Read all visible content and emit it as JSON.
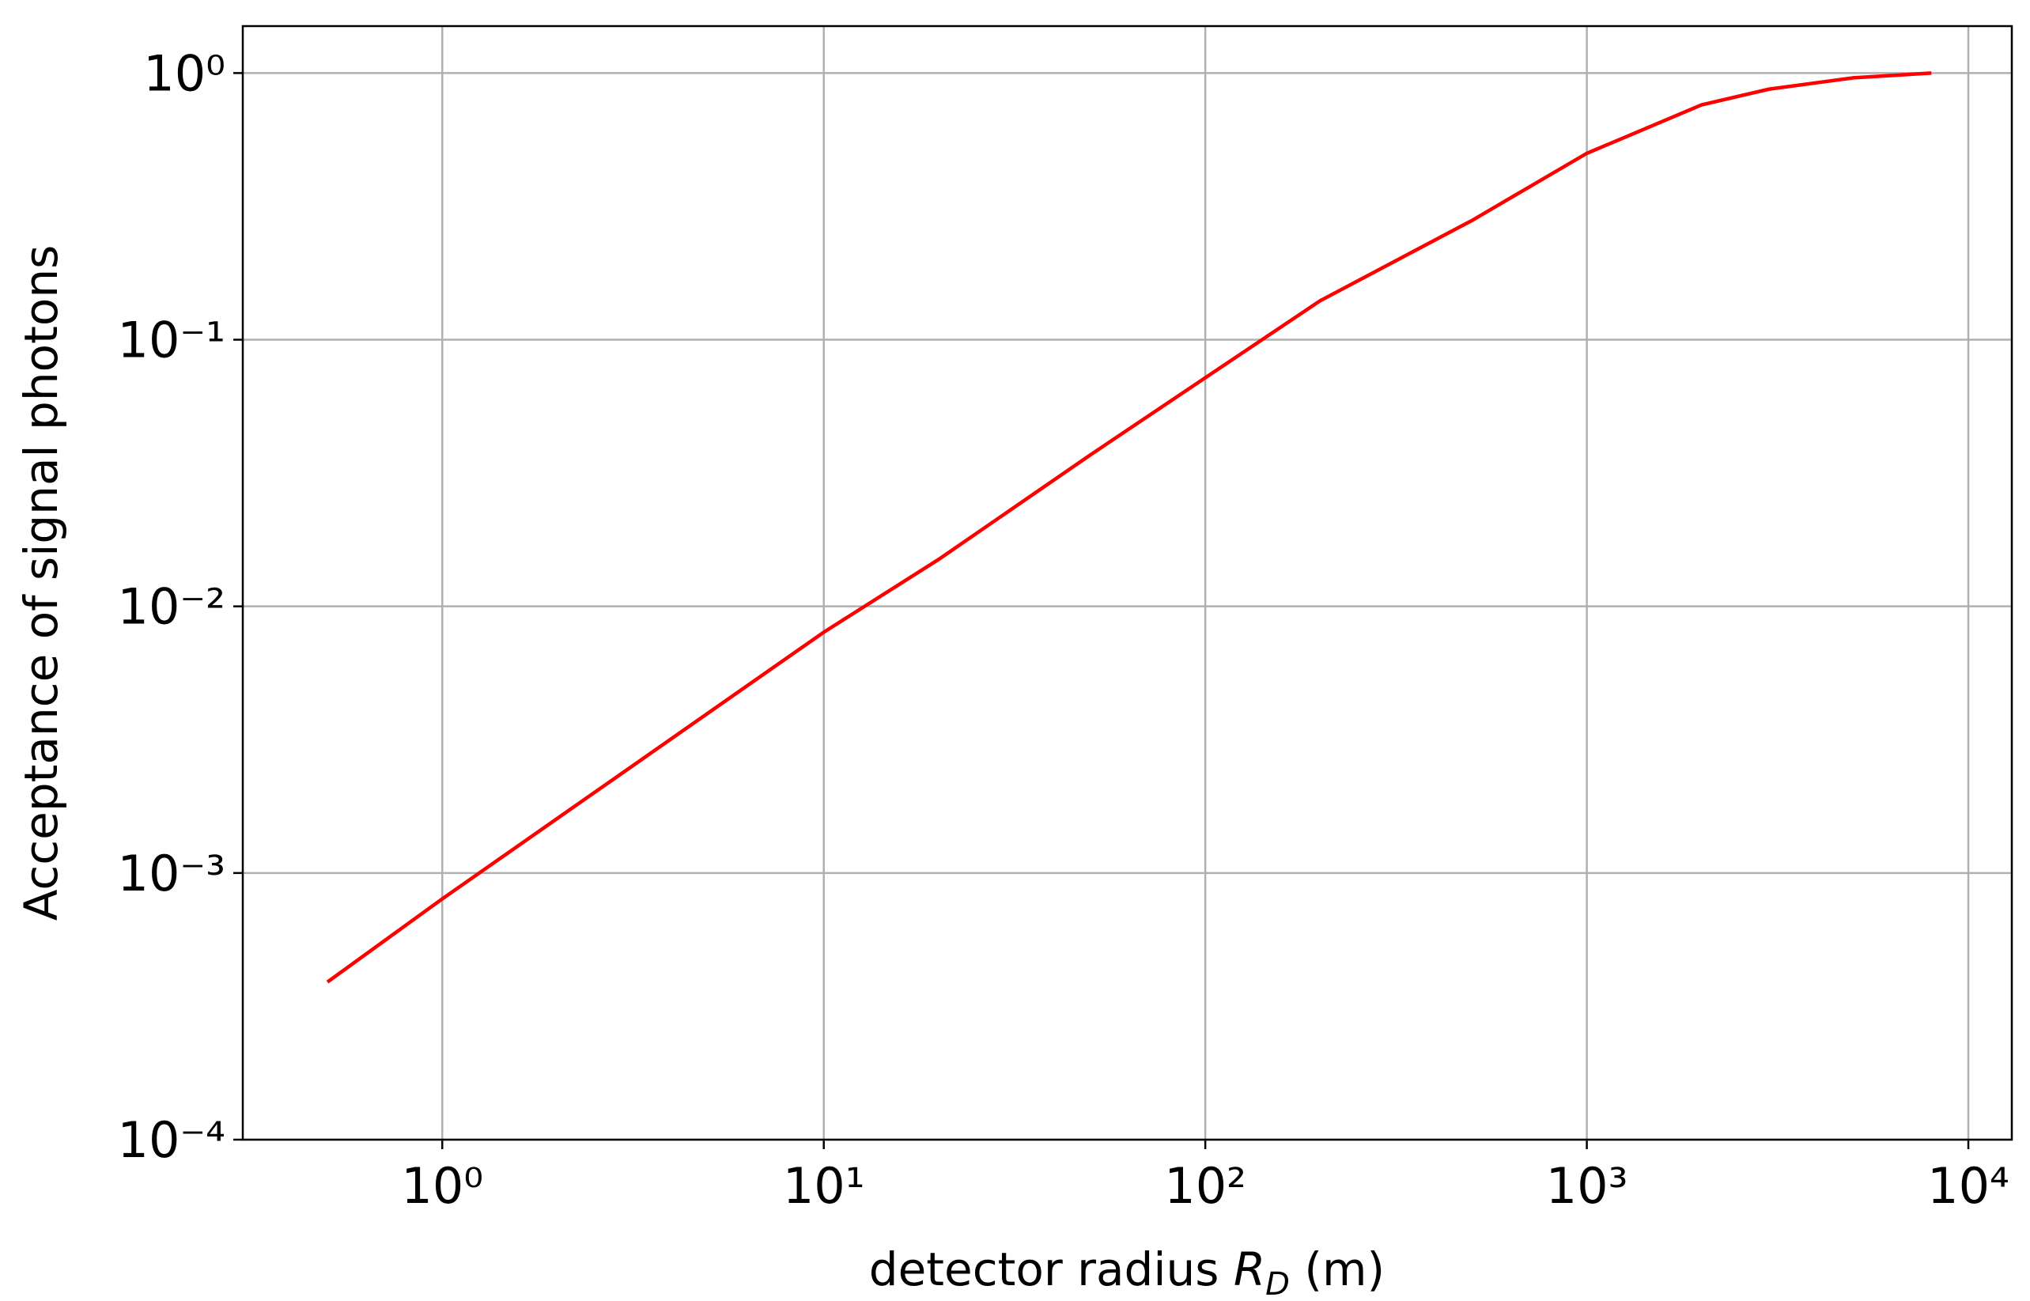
{
  "chart_data": {
    "type": "line",
    "xlabel": [
      "detector radius ",
      "R",
      "D",
      " (m)"
    ],
    "ylabel": "Acceptance of signal photons",
    "xscale": "log",
    "yscale": "log",
    "grid": true,
    "xlim": [
      0.3,
      13000
    ],
    "ylim": [
      0.0001,
      1.5
    ],
    "xticks": [
      {
        "value": 1,
        "label": "10⁰"
      },
      {
        "value": 10,
        "label": "10¹"
      },
      {
        "value": 100,
        "label": "10²"
      },
      {
        "value": 1000,
        "label": "10³"
      },
      {
        "value": 10000,
        "label": "10⁴"
      }
    ],
    "yticks": [
      {
        "value": 0.0001,
        "label": "10⁻⁴"
      },
      {
        "value": 0.001,
        "label": "10⁻³"
      },
      {
        "value": 0.01,
        "label": "10⁻²"
      },
      {
        "value": 0.1,
        "label": "10⁻¹"
      },
      {
        "value": 1,
        "label": "10⁰"
      }
    ],
    "x": [
      0.5,
      1,
      2,
      5,
      10,
      20,
      50,
      100,
      200,
      500,
      1000,
      2000,
      3000,
      5000,
      8000
    ],
    "series": [
      {
        "color": "#ff0000",
        "values": [
          0.00039,
          0.0008,
          0.0016,
          0.004,
          0.008,
          0.015,
          0.037,
          0.072,
          0.14,
          0.28,
          0.5,
          0.76,
          0.87,
          0.96,
          1.0
        ]
      }
    ]
  }
}
